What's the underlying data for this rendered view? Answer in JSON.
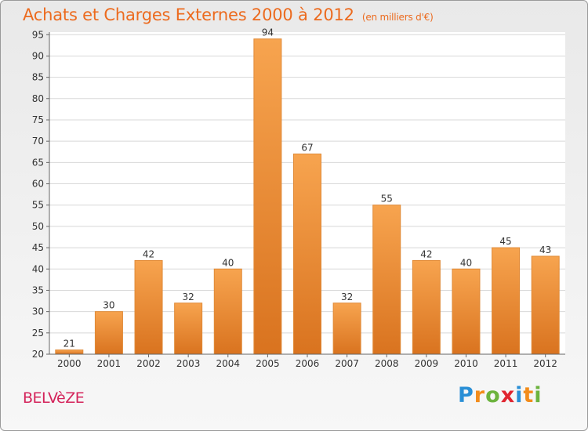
{
  "header": {
    "title": "Achats et Charges Externes 2000 à 2012",
    "subtitle": "(en milliers d'€)"
  },
  "footer": {
    "place": "BELVèZE",
    "brand": [
      "P",
      "r",
      "o",
      "x",
      "i",
      "t",
      "i"
    ],
    "brand_colors": [
      "#2a8fd6",
      "#f28c1b",
      "#6cb33e",
      "#e0242f",
      "#2a8fd6",
      "#f28c1b",
      "#6cb33e"
    ]
  },
  "chart_data": {
    "type": "bar",
    "categories": [
      "2000",
      "2001",
      "2002",
      "2003",
      "2004",
      "2005",
      "2006",
      "2007",
      "2008",
      "2009",
      "2010",
      "2011",
      "2012"
    ],
    "values": [
      21,
      30,
      42,
      32,
      40,
      94,
      67,
      32,
      55,
      42,
      40,
      45,
      43
    ],
    "ylim": [
      20,
      95
    ],
    "yticks": [
      20,
      25,
      30,
      35,
      40,
      45,
      50,
      55,
      60,
      65,
      70,
      75,
      80,
      85,
      90,
      95
    ],
    "grid": true,
    "bar_color_top": "#f7a44f",
    "bar_color_bottom": "#d9731f"
  }
}
